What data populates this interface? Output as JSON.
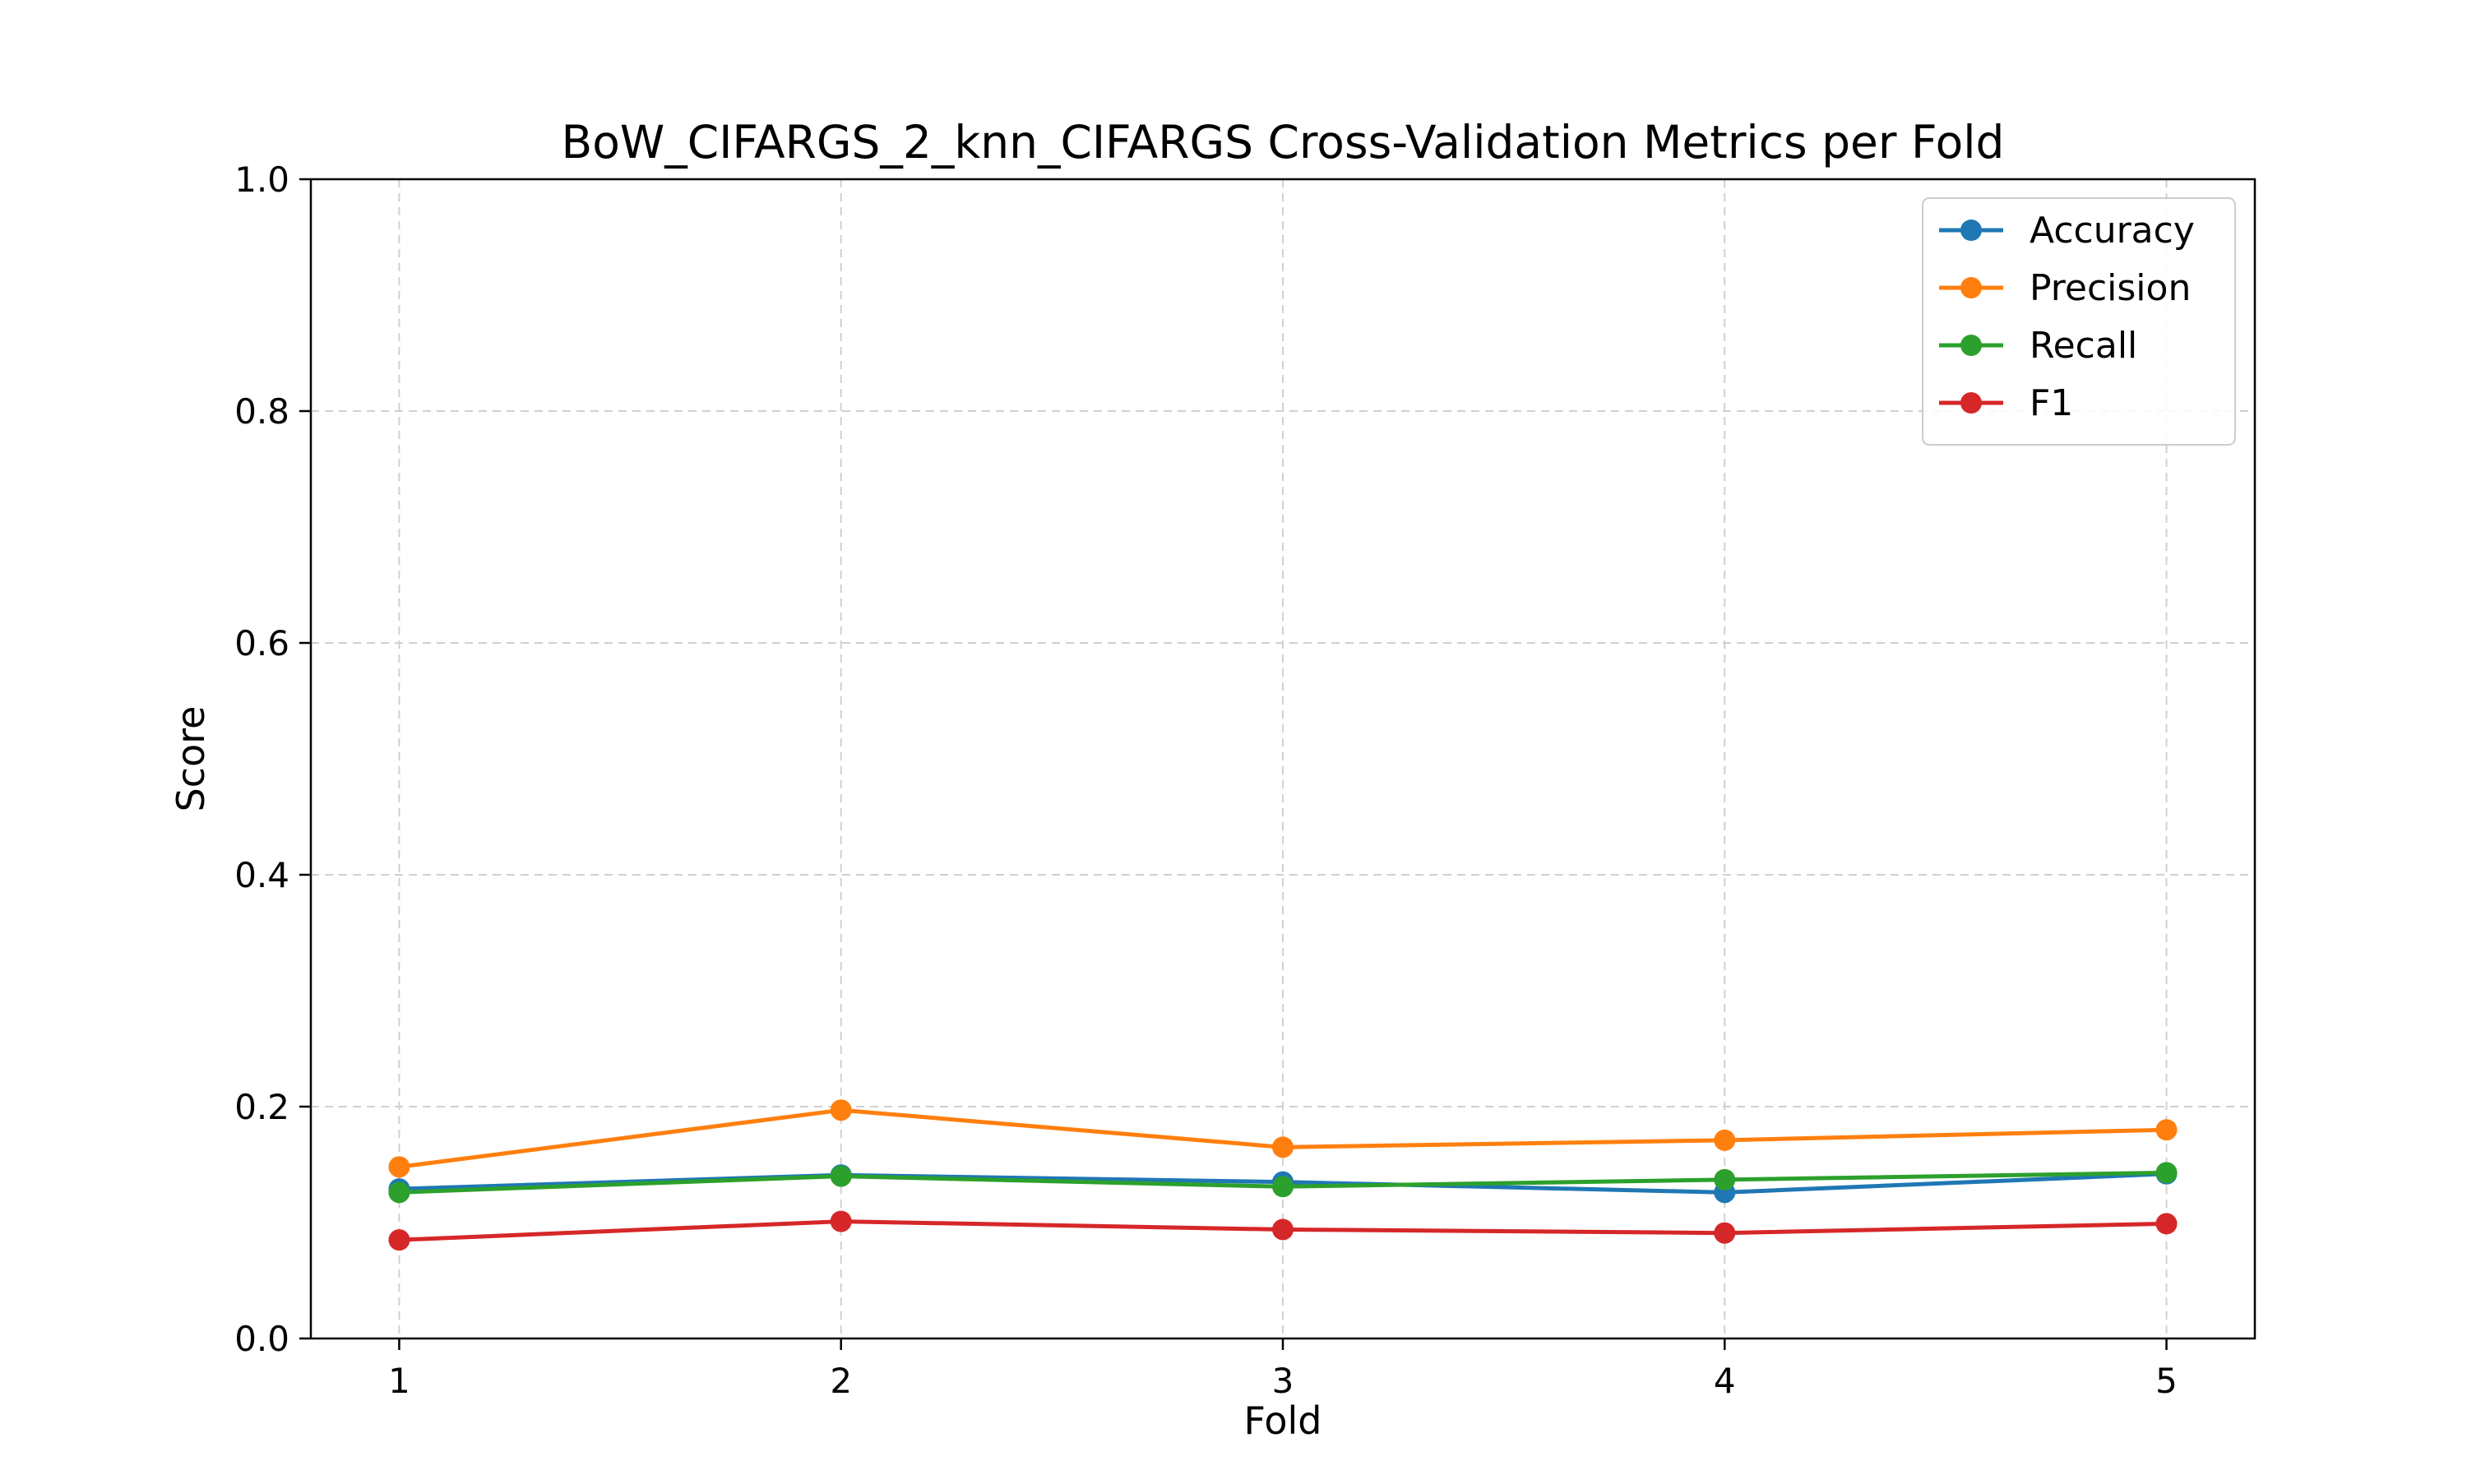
{
  "chart_data": {
    "type": "line",
    "title": "BoW_CIFARGS_2_knn_CIFARGS Cross-Validation Metrics per Fold",
    "xlabel": "Fold",
    "ylabel": "Score",
    "x": [
      1,
      2,
      3,
      4,
      5
    ],
    "x_ticks": [
      "1",
      "2",
      "3",
      "4",
      "5"
    ],
    "xlim": [
      0.8,
      5.2
    ],
    "ylim": [
      0.0,
      1.0
    ],
    "y_ticks": [
      "0.0",
      "0.2",
      "0.4",
      "0.6",
      "0.8",
      "1.0"
    ],
    "grid": true,
    "legend_position": "top-right",
    "series": [
      {
        "name": "Accuracy",
        "color": "#1f77b4",
        "values": [
          0.129,
          0.141,
          0.135,
          0.126,
          0.142
        ]
      },
      {
        "name": "Precision",
        "color": "#ff7f0e",
        "values": [
          0.148,
          0.197,
          0.165,
          0.171,
          0.18
        ]
      },
      {
        "name": "Recall",
        "color": "#2ca02c",
        "values": [
          0.126,
          0.14,
          0.131,
          0.137,
          0.143
        ]
      },
      {
        "name": "F1",
        "color": "#d62728",
        "values": [
          0.085,
          0.101,
          0.094,
          0.091,
          0.099
        ]
      }
    ]
  }
}
